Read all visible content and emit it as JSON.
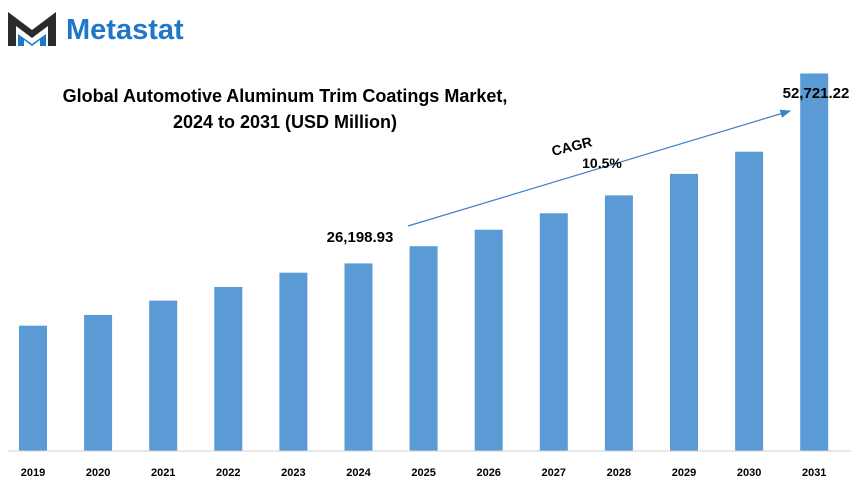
{
  "brand": {
    "name": "Metastat",
    "logo_icon": "metastat-m-logo-icon"
  },
  "colors": {
    "bar": "#5b9bd5",
    "axis": "#d0d0d0",
    "brand": "#1f77c9",
    "arrow": "#3f7fc4"
  },
  "chart_data": {
    "type": "bar",
    "title": "Global Automotive Aluminum Trim Coatings Market,",
    "subtitle": "2024 to 2031 (USD Million)",
    "xlabel": "",
    "ylabel": "",
    "categories": [
      "2019",
      "2020",
      "2021",
      "2022",
      "2023",
      "2024",
      "2025",
      "2026",
      "2027",
      "2028",
      "2029",
      "2030",
      "2031"
    ],
    "values": [
      17500,
      19000,
      21000,
      22900,
      24900,
      26198.93,
      28600,
      30900,
      33200,
      35700,
      38700,
      41800,
      52721.22
    ],
    "ylim": [
      0,
      56000
    ],
    "grid": false,
    "legend": "none",
    "annotations": {
      "start_label": "26,198.93",
      "end_label": "52,721.22",
      "cagr_label": "CAGR",
      "cagr_value": "10.5%"
    }
  }
}
